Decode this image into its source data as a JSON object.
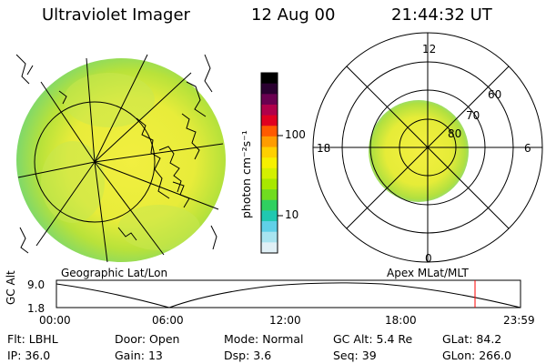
{
  "header": {
    "title": "Ultraviolet Imager",
    "date": "12 Aug 00",
    "time": "21:44:32 UT"
  },
  "colorbar": {
    "label": "photon cm⁻²s⁻¹",
    "ticks": [
      "100",
      "10"
    ],
    "colors": [
      "#000000",
      "#2a0030",
      "#6a0050",
      "#b0004a",
      "#e00020",
      "#ff5a00",
      "#ff9c00",
      "#ffd000",
      "#f6f000",
      "#d4f000",
      "#a8e800",
      "#70dc20",
      "#30d060",
      "#20c8b0",
      "#60d0e8",
      "#a8e4f0",
      "#e0f0f6"
    ]
  },
  "left_panel": {
    "caption": "Geographic Lat/Lon"
  },
  "right_panel": {
    "caption": "Apex MLat/MLT",
    "mlt_labels": [
      "12",
      "6",
      "0",
      "18"
    ],
    "mlat_labels": [
      "80",
      "70",
      "60"
    ]
  },
  "altitude_strip": {
    "axis_label": "GC Alt",
    "y_ticks": [
      "9.0",
      "1.8"
    ],
    "x_ticks": [
      "00:00",
      "06:00",
      "12:00",
      "18:00",
      "23:59"
    ],
    "current_time_marker_color": "#ff0000"
  },
  "info": {
    "row1": [
      {
        "k": "Flt:",
        "v": "LBHL"
      },
      {
        "k": "Door:",
        "v": "Open"
      },
      {
        "k": "Mode:",
        "v": "Normal"
      },
      {
        "k": "GC Alt:",
        "v": "5.4 Re"
      },
      {
        "k": "GLat:",
        "v": "84.2"
      }
    ],
    "row2": [
      {
        "k": "IP:",
        "v": "36.0"
      },
      {
        "k": "Gain:",
        "v": "13"
      },
      {
        "k": "Dsp:",
        "v": "3.6"
      },
      {
        "k": "Seq:",
        "v": "39"
      },
      {
        "k": "GLon:",
        "v": "266.0"
      }
    ]
  }
}
